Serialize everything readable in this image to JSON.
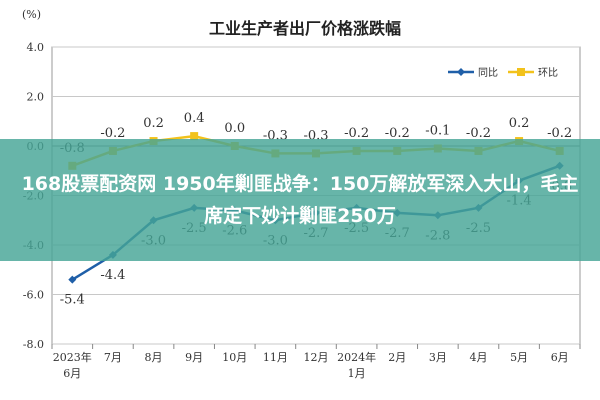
{
  "chart_data": {
    "type": "line",
    "title": "工业生产者出厂价格涨跌幅",
    "unit": "(%)",
    "categories": [
      [
        "2023年",
        "6月"
      ],
      [
        "7月"
      ],
      [
        "8月"
      ],
      [
        "9月"
      ],
      [
        "10月"
      ],
      [
        "11月"
      ],
      [
        "12月"
      ],
      [
        "2024年",
        "1月"
      ],
      [
        "2月"
      ],
      [
        "3月"
      ],
      [
        "4月"
      ],
      [
        "5月"
      ],
      [
        "6月"
      ]
    ],
    "ylim": [
      -8.0,
      4.0
    ],
    "yticks": [
      "4.0",
      "2.0",
      "0.0",
      "-2.0",
      "-4.0",
      "-6.0",
      "-8.0"
    ],
    "series": [
      {
        "name": "同比",
        "color": "#1f5fa8",
        "values": [
          -5.4,
          -4.4,
          -3.0,
          -2.5,
          -2.6,
          -3.0,
          -2.7,
          -2.5,
          -2.7,
          -2.8,
          -2.5,
          -1.4,
          -0.8
        ],
        "labels": [
          "-5.4",
          "-4.4",
          "-3.0",
          "-2.5",
          "-2.6",
          "-3.0",
          "-2.7",
          "-2.5",
          "-2.7",
          "-2.8",
          "-2.5",
          "-1.4",
          "-0.8"
        ]
      },
      {
        "name": "环比",
        "color": "#f2c21b",
        "values": [
          -0.8,
          -0.2,
          0.2,
          0.4,
          0.0,
          -0.3,
          -0.3,
          -0.2,
          -0.2,
          -0.1,
          -0.2,
          0.2,
          -0.2
        ],
        "labels": [
          "-0.8",
          "-0.2",
          "0.2",
          "0.4",
          "0.0",
          "-0.3",
          "-0.3",
          "-0.2",
          "-0.2",
          "-0.1",
          "-0.2",
          "0.2",
          "-0.2"
        ]
      }
    ],
    "grid": true,
    "legend": "top-right"
  },
  "overlay": {
    "text": "168股票配资网 1950年剿匪战争：150万解放军深入大山，毛主席定下妙计剿匪250万"
  }
}
